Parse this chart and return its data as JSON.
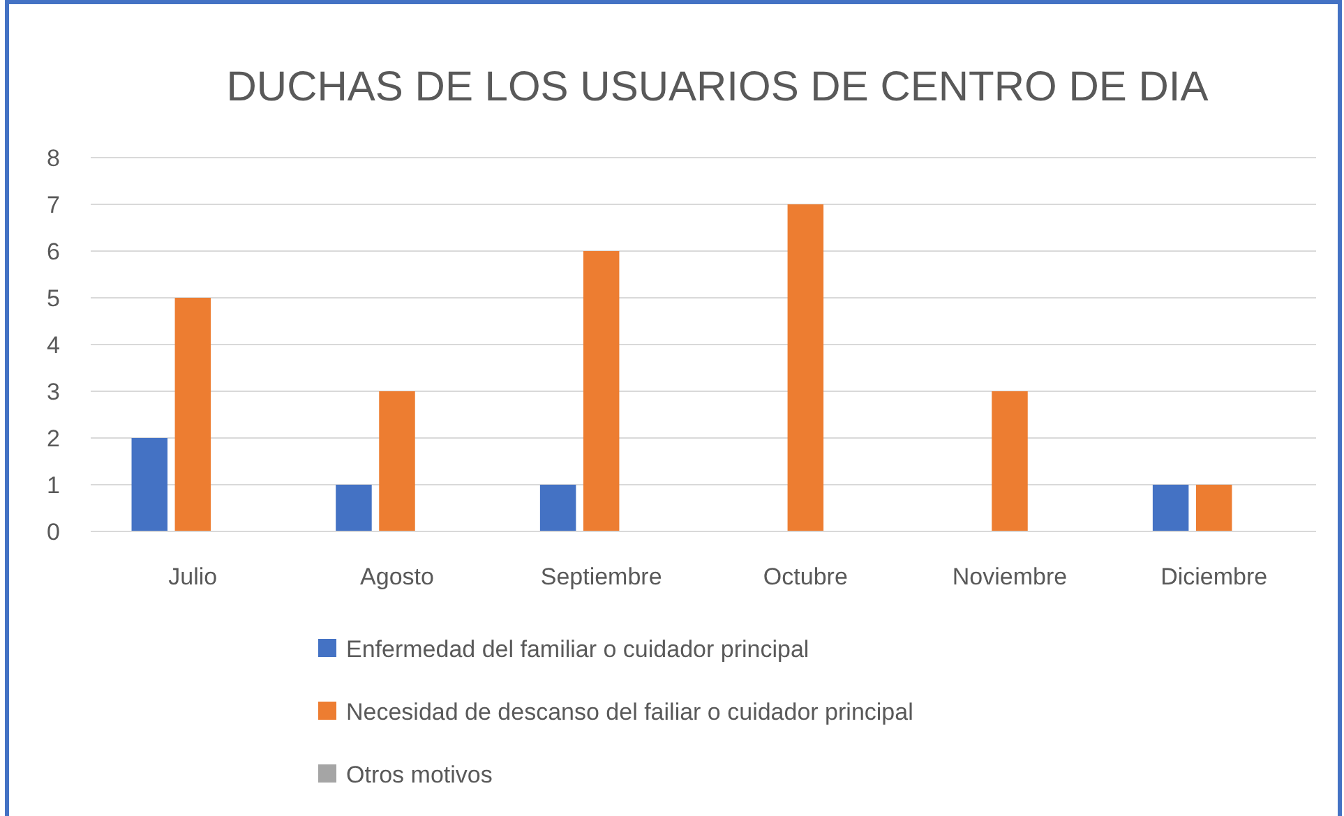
{
  "chart_data": {
    "type": "bar",
    "title": "DUCHAS DE LOS USUARIOS DE CENTRO DE DIA",
    "categories": [
      "Julio",
      "Agosto",
      "Septiembre",
      "Octubre",
      "Noviembre",
      "Diciembre"
    ],
    "series": [
      {
        "name": "Enfermedad del familiar o cuidador principal",
        "color": "#4472c4",
        "values": [
          2,
          1,
          1,
          0,
          0,
          1
        ]
      },
      {
        "name": "Necesidad de descanso del failiar o cuidador principal",
        "color": "#ed7d31",
        "values": [
          5,
          3,
          6,
          7,
          3,
          1
        ]
      },
      {
        "name": "Otros motivos",
        "color": "#a5a5a5",
        "values": [
          0,
          0,
          0,
          0,
          0,
          0
        ]
      }
    ],
    "ylim": [
      0,
      8
    ],
    "yticks": [
      0,
      1,
      2,
      3,
      4,
      5,
      6,
      7,
      8
    ],
    "grid": "y",
    "legend": "bottom"
  }
}
